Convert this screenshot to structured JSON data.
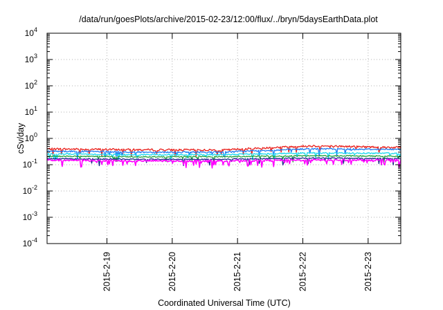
{
  "chart_data": {
    "type": "line",
    "title": "/data/run/goesPlots/archive/2015-02-23/12:00/flux/../bryn/5daysEarthData.plot",
    "xlabel": "Coordinated Universal Time (UTC)",
    "ylabel": "cSv/day",
    "yscale": "log",
    "ylim": [
      0.0001,
      10000
    ],
    "xlim": [
      "2015-02-18T02:00",
      "2015-02-23T12:00"
    ],
    "grid": true,
    "legend": "none",
    "y_ticks": [
      {
        "base": "10",
        "exp": "-4",
        "value": 0.0001
      },
      {
        "base": "10",
        "exp": "-3",
        "value": 0.001
      },
      {
        "base": "10",
        "exp": "-2",
        "value": 0.01
      },
      {
        "base": "10",
        "exp": "-1",
        "value": 0.1
      },
      {
        "base": "10",
        "exp": "0",
        "value": 1
      },
      {
        "base": "10",
        "exp": "1",
        "value": 10
      },
      {
        "base": "10",
        "exp": "2",
        "value": 100
      },
      {
        "base": "10",
        "exp": "3",
        "value": 1000
      },
      {
        "base": "10",
        "exp": "4",
        "value": 10000
      }
    ],
    "x_ticks": [
      {
        "label": "2015-2-19",
        "value": "2015-02-19T00:00"
      },
      {
        "label": "2015-2-20",
        "value": "2015-02-20T00:00"
      },
      {
        "label": "2015-2-21",
        "value": "2015-02-21T00:00"
      },
      {
        "label": "2015-2-22",
        "value": "2015-02-22T00:00"
      },
      {
        "label": "2015-2-23",
        "value": "2015-02-23T00:00"
      }
    ],
    "series": [
      {
        "color": "#e8201c",
        "base": [
          0.4,
          0.37,
          0.36,
          0.52,
          0.45
        ],
        "noise": 0.09,
        "dip": 0.05
      },
      {
        "color": "#1e7bf2",
        "base": [
          0.33,
          0.3,
          0.3,
          0.4,
          0.38
        ],
        "noise": 0.07,
        "dip": 0.05
      },
      {
        "color": "#18d8ee",
        "base": [
          0.26,
          0.24,
          0.24,
          0.28,
          0.27
        ],
        "noise": 0.06,
        "dip": 0.05
      },
      {
        "color": "#1fa03a",
        "base": [
          0.21,
          0.2,
          0.2,
          0.22,
          0.21
        ],
        "noise": 0.05,
        "dip": 0.04
      },
      {
        "color": "#1a2a8a",
        "base": [
          0.17,
          0.16,
          0.16,
          0.18,
          0.17
        ],
        "noise": 0.05,
        "dip": 0.04
      },
      {
        "color": "#ff00ff",
        "base": [
          0.15,
          0.14,
          0.14,
          0.15,
          0.15
        ],
        "noise": 0.08,
        "dip": 0.12
      }
    ]
  }
}
